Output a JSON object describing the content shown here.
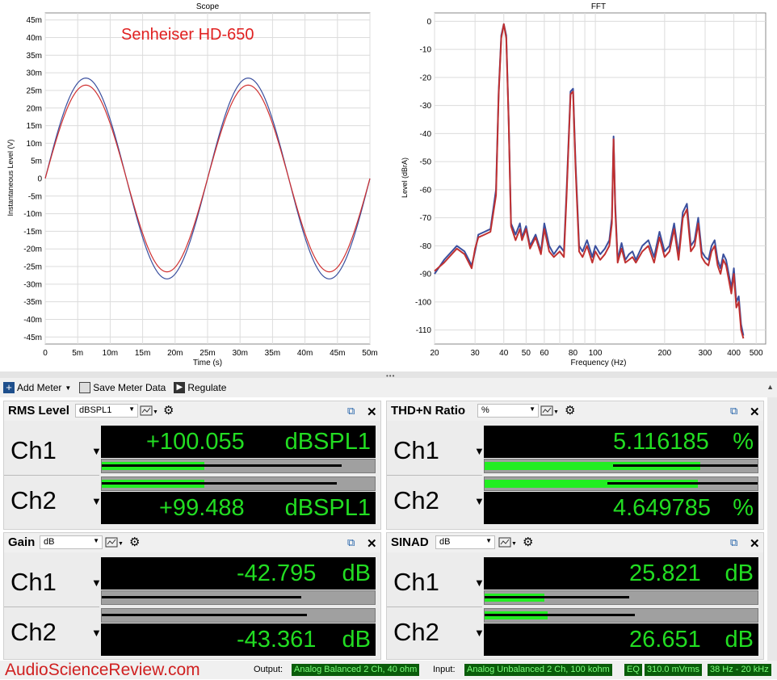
{
  "scope": {
    "title": "Scope",
    "annotation": "Senheiser HD-650",
    "xlabel": "Time (s)",
    "ylabel": "Instantaneous Level (V)",
    "yticks": [
      "45m",
      "40m",
      "35m",
      "30m",
      "25m",
      "20m",
      "15m",
      "10m",
      "5m",
      "0",
      "-5m",
      "-10m",
      "-15m",
      "-20m",
      "-25m",
      "-30m",
      "-35m",
      "-40m",
      "-45m"
    ],
    "xticks": [
      "0",
      "5m",
      "10m",
      "15m",
      "20m",
      "25m",
      "30m",
      "35m",
      "40m",
      "45m",
      "50m"
    ]
  },
  "fft": {
    "title": "FFT",
    "xlabel": "Frequency (Hz)",
    "ylabel": "Level (dBrA)",
    "yticks": [
      "0",
      "-10",
      "-20",
      "-30",
      "-40",
      "-50",
      "-60",
      "-70",
      "-80",
      "-90",
      "-100",
      "-110"
    ],
    "xticks": [
      "20",
      "30",
      "40",
      "50",
      "60",
      "80",
      "100",
      "200",
      "300",
      "400",
      "500"
    ]
  },
  "chart_data": [
    {
      "type": "line",
      "title": "Scope",
      "xlabel": "Time (s)",
      "ylabel": "Instantaneous Level (V)",
      "xlim": [
        0,
        0.05
      ],
      "ylim": [
        -0.047,
        0.047
      ],
      "grid": true,
      "series": [
        {
          "color": "#3a4f9e",
          "amplitude": 0.0285,
          "period": 0.025,
          "x": [
            0,
            0.00625,
            0.0125,
            0.01875,
            0.025,
            0.03125,
            0.0375,
            0.04375,
            0.05
          ],
          "y": [
            0,
            0.0285,
            0,
            -0.0285,
            0,
            0.0285,
            0,
            -0.0285,
            0
          ]
        },
        {
          "color": "#d03030",
          "amplitude": 0.0265,
          "period": 0.025,
          "x": [
            0,
            0.00625,
            0.0125,
            0.01875,
            0.025,
            0.03125,
            0.0375,
            0.04375,
            0.05
          ],
          "y": [
            0,
            0.0265,
            0,
            -0.0265,
            0,
            0.0265,
            0,
            -0.0265,
            0
          ]
        }
      ]
    },
    {
      "type": "line",
      "title": "FFT",
      "xlabel": "Frequency (Hz)",
      "ylabel": "Level (dBrA)",
      "xscale": "log",
      "xlim": [
        20,
        550
      ],
      "ylim": [
        -115,
        3
      ],
      "grid": true,
      "series": [
        {
          "color": "#3a4f9e",
          "x": [
            20,
            22,
            25,
            27,
            29,
            30,
            31,
            33,
            35,
            37,
            38,
            39,
            40,
            41,
            42,
            43,
            45,
            47,
            48,
            50,
            52,
            55,
            58,
            60,
            63,
            66,
            70,
            73,
            75,
            78,
            80,
            82,
            85,
            88,
            92,
            97,
            100,
            105,
            110,
            115,
            118,
            120,
            122,
            125,
            130,
            135,
            140,
            145,
            150,
            160,
            170,
            180,
            190,
            200,
            210,
            220,
            230,
            240,
            250,
            260,
            270,
            280,
            290,
            300,
            310,
            320,
            330,
            340,
            350,
            360,
            370,
            380,
            390,
            400,
            410,
            420,
            430,
            440
          ],
          "y": [
            -90,
            -85,
            -80,
            -82,
            -87,
            -82,
            -76,
            -75,
            -74,
            -60,
            -25,
            -5,
            -1,
            -5,
            -35,
            -72,
            -76,
            -72,
            -77,
            -73,
            -80,
            -76,
            -82,
            -72,
            -80,
            -83,
            -80,
            -82,
            -60,
            -25,
            -24,
            -50,
            -80,
            -82,
            -78,
            -84,
            -80,
            -83,
            -81,
            -78,
            -70,
            -41,
            -65,
            -85,
            -79,
            -85,
            -83,
            -82,
            -85,
            -80,
            -78,
            -84,
            -75,
            -82,
            -80,
            -72,
            -83,
            -68,
            -65,
            -80,
            -78,
            -70,
            -82,
            -84,
            -85,
            -80,
            -78,
            -85,
            -88,
            -83,
            -85,
            -90,
            -95,
            -88,
            -100,
            -98,
            -108,
            -112
          ]
        },
        {
          "color": "#c03030",
          "x": [
            20,
            22,
            25,
            27,
            29,
            30,
            31,
            33,
            35,
            37,
            38,
            39,
            40,
            41,
            42,
            43,
            45,
            47,
            48,
            50,
            52,
            55,
            58,
            60,
            63,
            66,
            70,
            73,
            75,
            78,
            80,
            82,
            85,
            88,
            92,
            97,
            100,
            105,
            110,
            115,
            118,
            120,
            122,
            125,
            130,
            135,
            140,
            145,
            150,
            160,
            170,
            180,
            190,
            200,
            210,
            220,
            230,
            240,
            250,
            260,
            270,
            280,
            290,
            300,
            310,
            320,
            330,
            340,
            350,
            360,
            370,
            380,
            390,
            400,
            410,
            420,
            430,
            440
          ],
          "y": [
            -89,
            -86,
            -81,
            -83,
            -88,
            -81,
            -77,
            -76,
            -75,
            -62,
            -26,
            -6,
            -1,
            -6,
            -36,
            -73,
            -78,
            -74,
            -78,
            -74,
            -81,
            -77,
            -83,
            -74,
            -82,
            -84,
            -82,
            -84,
            -62,
            -26,
            -25,
            -52,
            -82,
            -84,
            -80,
            -86,
            -82,
            -85,
            -83,
            -80,
            -72,
            -42,
            -67,
            -86,
            -81,
            -86,
            -85,
            -84,
            -86,
            -82,
            -80,
            -86,
            -77,
            -84,
            -82,
            -74,
            -85,
            -70,
            -67,
            -82,
            -80,
            -72,
            -84,
            -86,
            -87,
            -82,
            -80,
            -87,
            -90,
            -85,
            -87,
            -92,
            -97,
            -90,
            -102,
            -100,
            -110,
            -113
          ]
        }
      ]
    }
  ],
  "toolbar": {
    "add_meter": "Add Meter",
    "save_meter_data": "Save Meter Data",
    "regulate": "Regulate"
  },
  "meters": {
    "rms": {
      "title": "RMS Level",
      "unit": "dBSPL1",
      "ch1": {
        "label": "Ch1",
        "value": "+100.055",
        "unit": "dBSPL1",
        "fill_fraction": 0.375,
        "line_fraction": 0.88
      },
      "ch2": {
        "label": "Ch2",
        "value": "+99.488",
        "unit": "dBSPL1",
        "fill_fraction": 0.375,
        "line_fraction": 0.86
      }
    },
    "thd": {
      "title": "THD+N Ratio",
      "unit": "%",
      "ch1": {
        "label": "Ch1",
        "value": "5.116185",
        "unit": "%",
        "fill_fraction": 0.79,
        "line_start": 0.47,
        "line_fraction": 1.0
      },
      "ch2": {
        "label": "Ch2",
        "value": "4.649785",
        "unit": "%",
        "fill_fraction": 0.78,
        "line_start": 0.45,
        "line_fraction": 1.0
      }
    },
    "gain": {
      "title": "Gain",
      "unit": "dB",
      "ch1": {
        "label": "Ch1",
        "value": "-42.795",
        "unit": "dB",
        "line_fraction": 0.73
      },
      "ch2": {
        "label": "Ch2",
        "value": "-43.361",
        "unit": "dB",
        "line_fraction": 0.75
      }
    },
    "sinad": {
      "title": "SINAD",
      "unit": "dB",
      "ch1": {
        "label": "Ch1",
        "value": "25.821",
        "unit": "dB",
        "fill_fraction": 0.22,
        "line_fraction": 0.53
      },
      "ch2": {
        "label": "Ch2",
        "value": "26.651",
        "unit": "dB",
        "fill_fraction": 0.23,
        "line_fraction": 0.55
      }
    }
  },
  "status": {
    "watermark": "AudioScienceReview.com",
    "output_label": "Output:",
    "output_value": "Analog Balanced 2 Ch, 40 ohm",
    "input_label": "Input:",
    "input_value": "Analog Unbalanced 2 Ch, 100 kohm",
    "eq": "EQ",
    "level": "310.0 mVrms",
    "bandwidth": "38 Hz - 20 kHz"
  },
  "colors": {
    "accent_green": "#22dd22",
    "ch1": "#3a4f9e",
    "ch2": "#d03030"
  },
  "icons": [
    "add-meter-icon",
    "save-icon",
    "play-icon",
    "popout-icon",
    "close-icon",
    "settings-icon",
    "display-options-icon"
  ]
}
